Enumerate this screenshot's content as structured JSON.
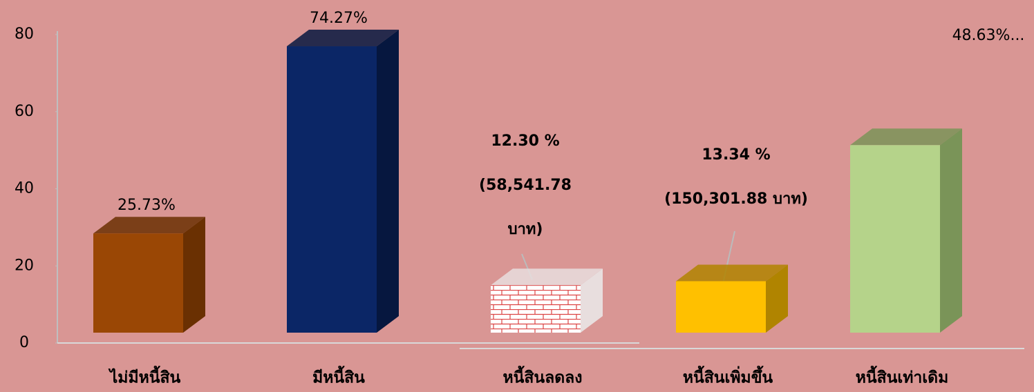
{
  "chart_data": {
    "type": "bar3d",
    "categories": [
      "ไม่มีหนี้สิน",
      "มีหนี้สิน",
      "หนี้สินลดลง",
      "หนี้สินเพิ่มขึ้น",
      "หนี้สินเท่าเดิม"
    ],
    "values": [
      25.73,
      74.27,
      12.3,
      13.34,
      48.63
    ],
    "value_labels": [
      [
        "25.73%"
      ],
      [
        "74.27%"
      ],
      [
        "12.30 %",
        "(58,541.78",
        "บาท)"
      ],
      [
        "13.34 %",
        "(150,301.88 บาท)"
      ],
      [
        "48.63%..."
      ]
    ],
    "colors": [
      "#9a4705",
      "#0b2666",
      "url(#brick)",
      "#ffc000",
      "#b5d38a"
    ],
    "side_colors": [
      "#6a3002",
      "#06173f",
      "#e8dede",
      "#b08400",
      "#7a9458"
    ],
    "ylim": [
      0,
      80
    ],
    "yticks": [
      0,
      20,
      40,
      60,
      80
    ]
  }
}
